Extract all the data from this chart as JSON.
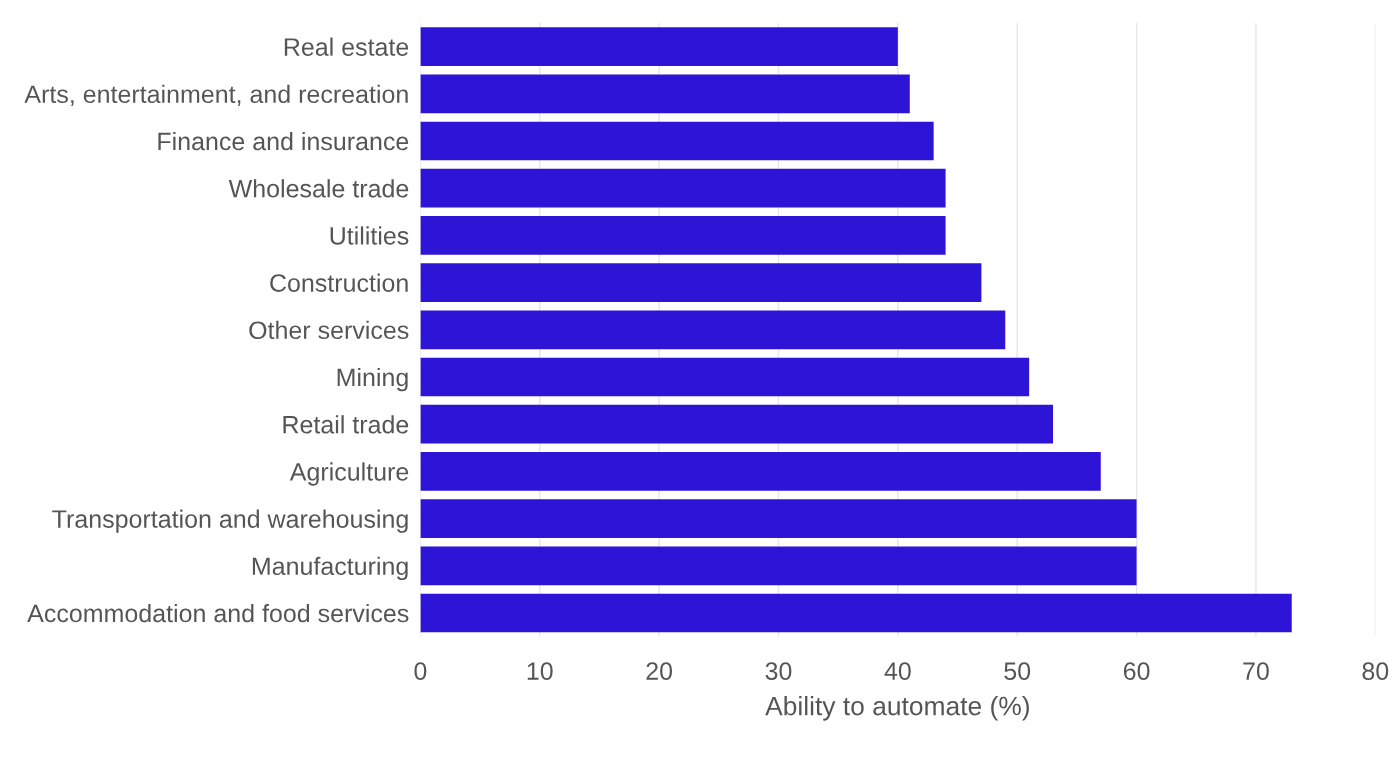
{
  "chart_data": {
    "type": "bar",
    "orientation": "horizontal",
    "xlabel": "Ability to automate (%)",
    "categories": [
      "Real estate",
      "Arts, entertainment, and recreation",
      "Finance and insurance",
      "Wholesale trade",
      "Utilities",
      "Construction",
      "Other services",
      "Mining",
      "Retail trade",
      "Agriculture",
      "Transportation and warehousing",
      "Manufacturing",
      "Accommodation and food services"
    ],
    "values": [
      40,
      41,
      43,
      44,
      44,
      47,
      49,
      51,
      53,
      57,
      60,
      60,
      73
    ],
    "color": "#2d14d6",
    "xlim": [
      0,
      80
    ],
    "xticks": [
      0,
      10,
      20,
      30,
      40,
      50,
      60,
      70,
      80
    ],
    "grid": "x"
  }
}
